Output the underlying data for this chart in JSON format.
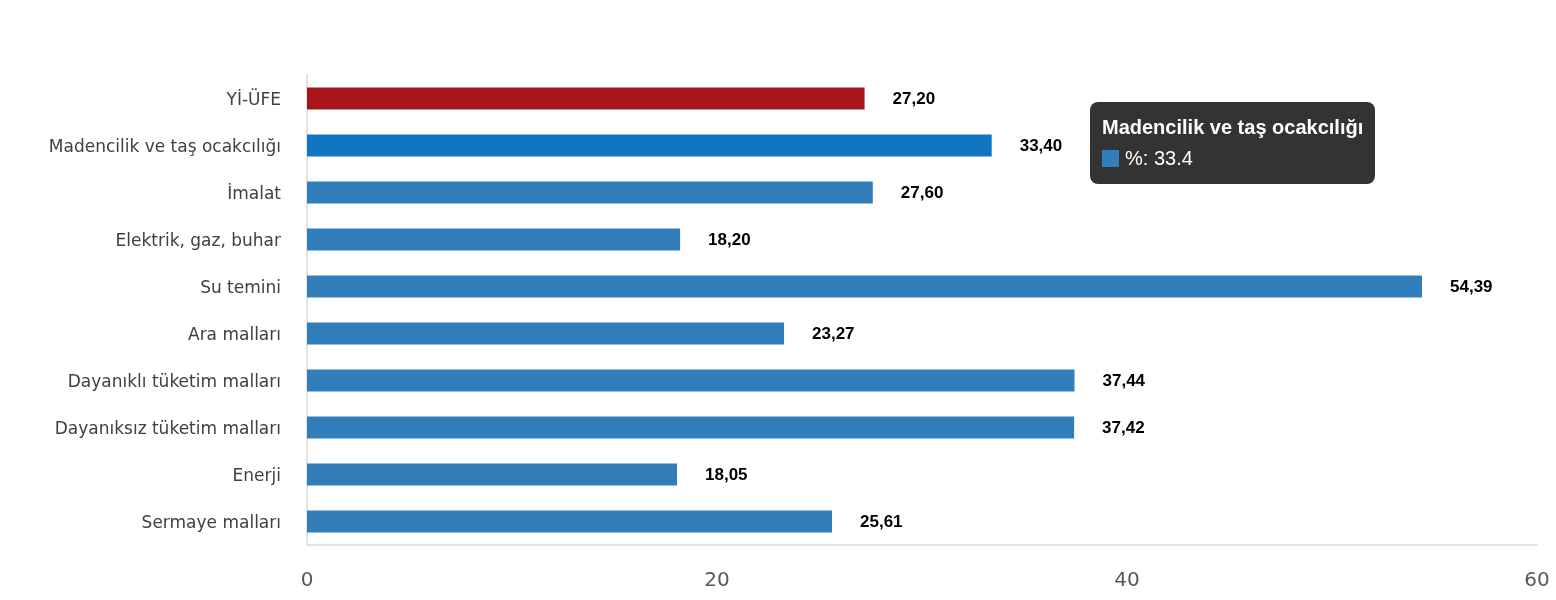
{
  "chart_data": {
    "type": "bar",
    "orientation": "horizontal",
    "categories": [
      "Yİ-ÜFE",
      "Madencilik ve taş ocakcılığı",
      "İmalat",
      "Elektrik, gaz, buhar",
      "Su temini",
      "Ara malları",
      "Dayanıklı tüketim malları",
      "Dayanıksız tüketim malları",
      "Enerji",
      "Sermaye malları"
    ],
    "values": [
      27.2,
      33.4,
      27.6,
      18.2,
      54.39,
      23.27,
      37.44,
      37.42,
      18.05,
      25.61
    ],
    "value_labels": [
      "27,20",
      "33,40",
      "27,60",
      "18,20",
      "54,39",
      "23,27",
      "37,44",
      "37,42",
      "18,05",
      "25,61"
    ],
    "colors": [
      "#a8151b",
      "#1275c2",
      "#317ebb",
      "#317ebb",
      "#317ebb",
      "#317ebb",
      "#317ebb",
      "#317ebb",
      "#317ebb",
      "#317ebb"
    ],
    "xlim": [
      0,
      60
    ],
    "xticks": [
      0,
      20,
      40,
      60
    ],
    "grid": false,
    "annotations": [
      "Madencilik ve taş ocakcılığı",
      "%: 33.4"
    ]
  }
}
